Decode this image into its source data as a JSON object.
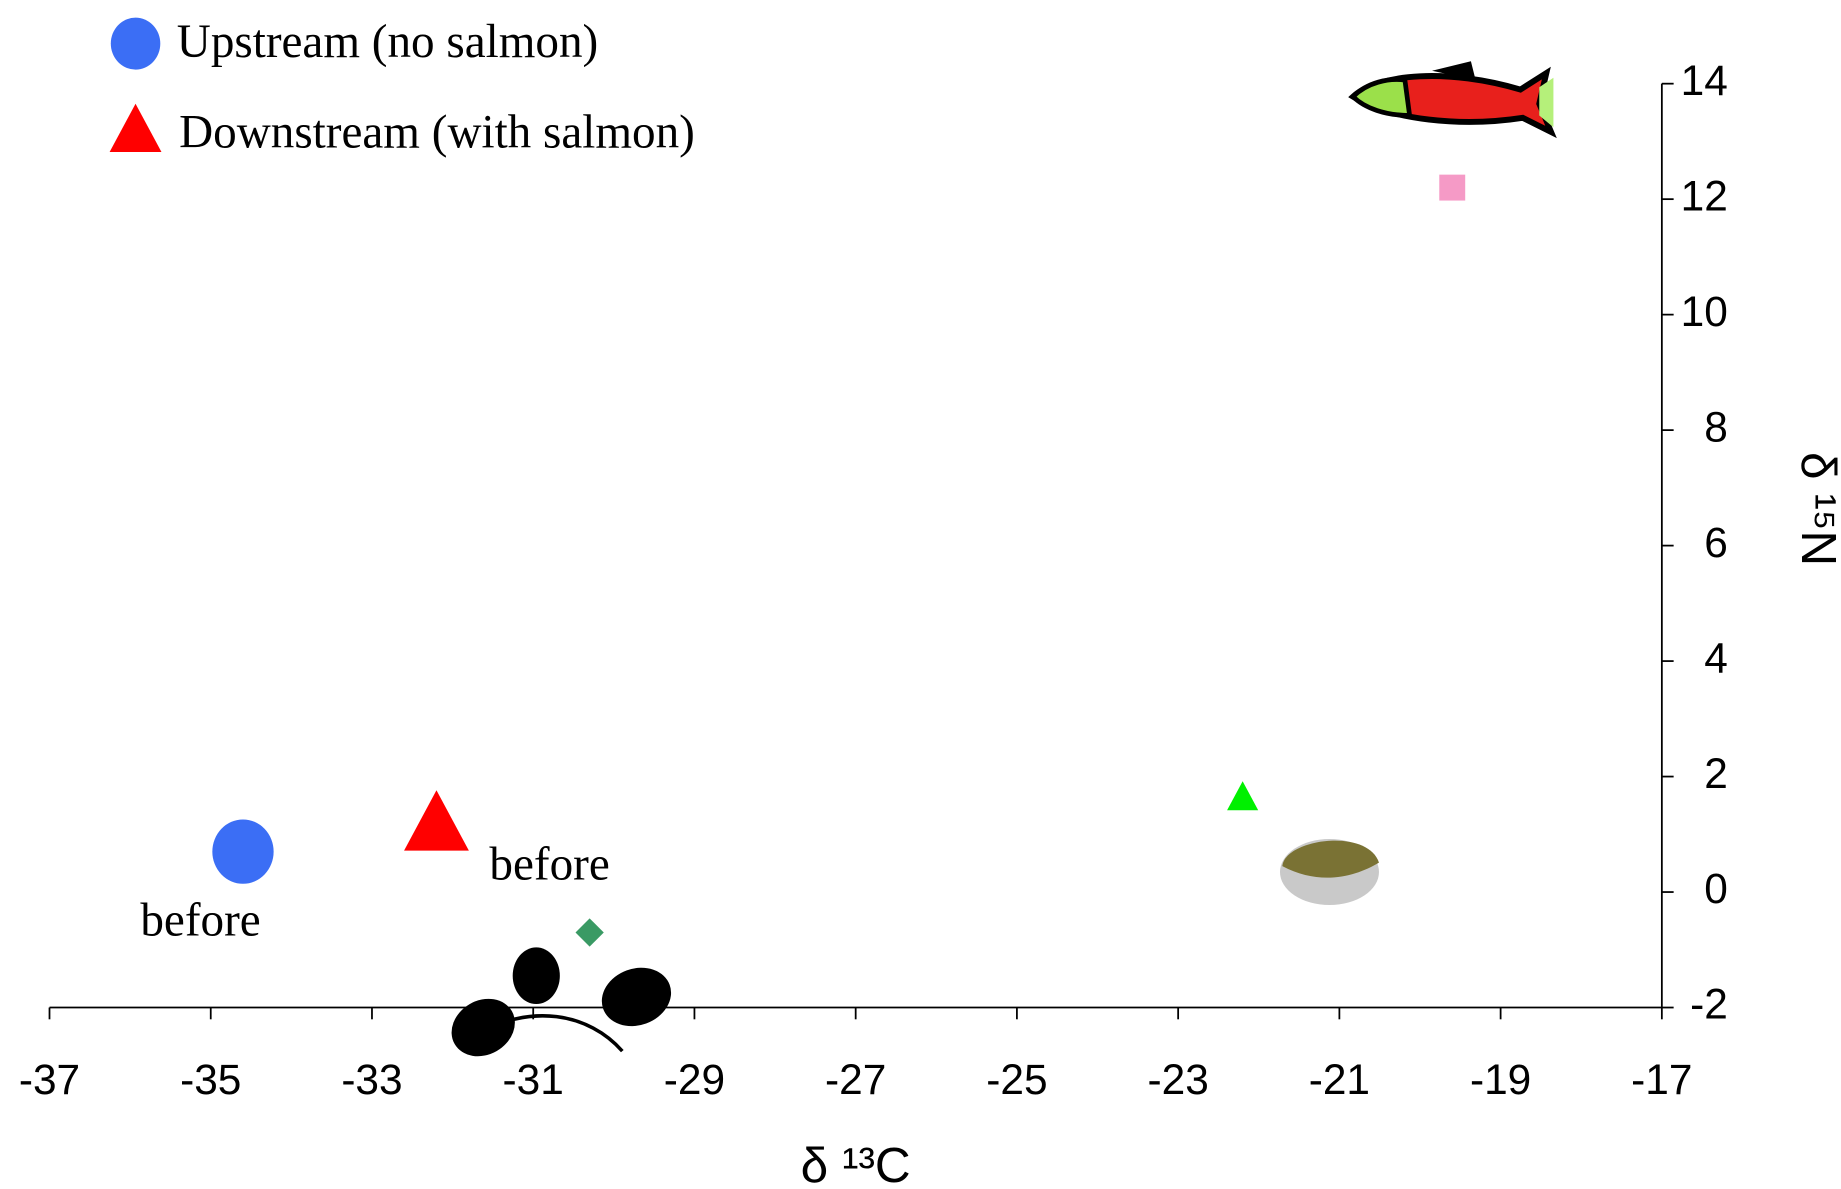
{
  "chart_data": {
    "type": "scatter",
    "series": [
      {
        "name": "Upstream (no salmon)",
        "color": "#3b6ef5",
        "marker": "circle",
        "x": [
          -34.6
        ],
        "y": [
          0.7
        ]
      },
      {
        "name": "Downstream (with salmon)",
        "color": "#ff0000",
        "marker": "triangle",
        "x": [
          -32.2
        ],
        "y": [
          1.1
        ]
      },
      {
        "color": "#3a9a64",
        "marker": "diamond",
        "x": [
          -30.3
        ],
        "y": [
          -0.7
        ]
      },
      {
        "color": "#00f000",
        "marker": "triangle",
        "x": [
          -22.2
        ],
        "y": [
          1.6
        ]
      },
      {
        "color": "#f59ac6",
        "marker": "square",
        "x": [
          -19.6
        ],
        "y": [
          12.2
        ]
      }
    ],
    "annotations": [
      "before",
      "before"
    ],
    "x_label": "δ ¹³C",
    "y_label": "δ ¹⁵N",
    "xlim": [
      -37,
      -17
    ],
    "xticks": [
      -37,
      -35,
      -33,
      -31,
      -29,
      -27,
      -25,
      -23,
      -21,
      -19,
      -17
    ],
    "ylim": [
      -2,
      14
    ],
    "yticks": [
      -2,
      0,
      2,
      4,
      6,
      8,
      10,
      12,
      14
    ]
  }
}
